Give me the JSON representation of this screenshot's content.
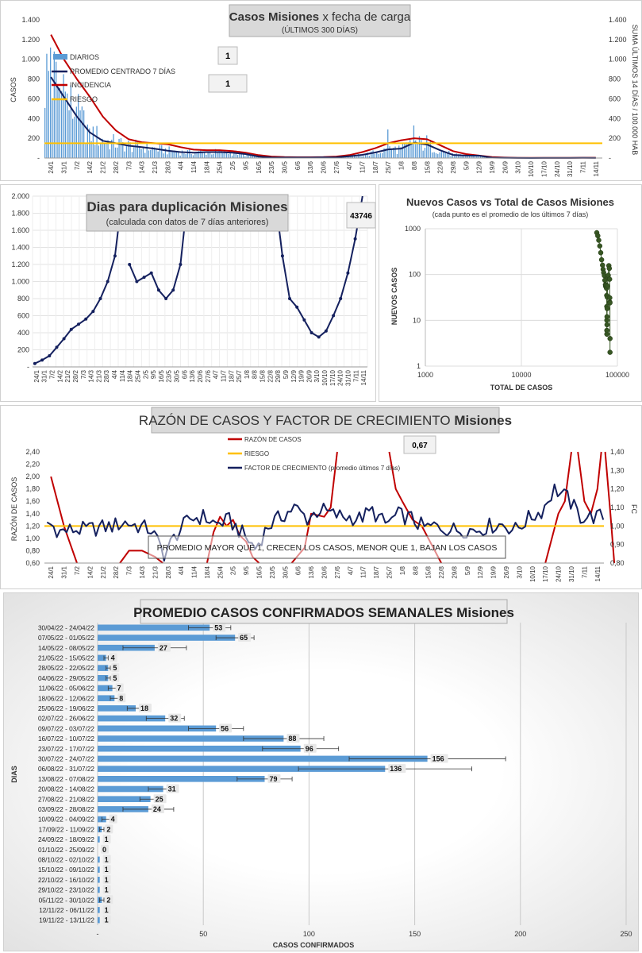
{
  "chart_data": [
    {
      "type": "bar",
      "id": "casos",
      "title_bold": "Casos  Misiones",
      "title_rest": "x fecha  de carga",
      "subtitle": "(ÚLTIMOS 300 DÍAS)",
      "ylabel": "CASOS",
      "y2label": "SUMA ÚLTIMOS 14 DÍAS / 100.000 HAB",
      "ylim": [
        0,
        1400
      ],
      "yticks": [
        "-",
        "200",
        "400",
        "600",
        "800",
        "1.000",
        "1.200",
        "1.400"
      ],
      "y2ticks": [
        "-",
        "200",
        "400",
        "600",
        "800",
        "1.000",
        "1.200",
        "1.400"
      ],
      "x_labels": [
        "24/1",
        "31/1",
        "7/2",
        "14/2",
        "21/2",
        "28/2",
        "7/3",
        "14/3",
        "21/3",
        "28/3",
        "4/4",
        "11/4",
        "18/4",
        "25/4",
        "2/5",
        "9/5",
        "16/5",
        "23/5",
        "30/5",
        "6/6",
        "13/6",
        "20/6",
        "27/6",
        "4/7",
        "11/7",
        "18/7",
        "25/7",
        "1/8",
        "8/8",
        "15/8",
        "22/8",
        "29/8",
        "5/9",
        "12/9",
        "19/9",
        "26/9",
        "3/10",
        "10/10",
        "17/10",
        "24/10",
        "31/10",
        "7/11",
        "14/11"
      ],
      "legend": [
        "DIARIOS",
        "PROMEDIO CENTRADO 7 DÍAS",
        "INCIDENCIA",
        "RIESGO"
      ],
      "badge1": "1",
      "badge2": "1",
      "riesgo": 150,
      "colors": {
        "diarios": "#5b9bd5",
        "promedio": "#14205e",
        "incidencia": "#c00000",
        "riesgo": "#ffc000"
      },
      "promedio_weekly": [
        820,
        620,
        420,
        260,
        175,
        150,
        125,
        110,
        95,
        75,
        60,
        55,
        60,
        60,
        55,
        40,
        15,
        6,
        5,
        5,
        5,
        7,
        8,
        18,
        32,
        56,
        88,
        96,
        156,
        136,
        79,
        31,
        25,
        24,
        4,
        2,
        1,
        0,
        1,
        1,
        1,
        2,
        1
      ],
      "incidencia_weekly": [
        1250,
        1000,
        800,
        620,
        420,
        280,
        190,
        160,
        150,
        140,
        110,
        85,
        80,
        80,
        70,
        55,
        30,
        15,
        10,
        8,
        8,
        10,
        15,
        30,
        60,
        100,
        150,
        180,
        200,
        190,
        130,
        70,
        40,
        25,
        10,
        5,
        2,
        2,
        2,
        2,
        2,
        3,
        3
      ],
      "diarios_peaks": [
        [
          0,
          1120
        ],
        [
          1,
          850
        ],
        [
          2,
          520
        ],
        [
          3,
          300
        ],
        [
          26,
          290
        ],
        [
          28,
          330
        ],
        [
          29,
          230
        ]
      ]
    },
    {
      "type": "line",
      "id": "duplicacion",
      "title": "Dias para duplicación Misiones",
      "subtitle": "(calculada con datos de 7 días anteriores)",
      "badge": "43746",
      "ylim": [
        0,
        2000
      ],
      "yticks": [
        "-",
        "200",
        "400",
        "600",
        "800",
        "1.000",
        "1.200",
        "1.400",
        "1.600",
        "1.800",
        "2.000"
      ],
      "x_labels": [
        "24/1",
        "31/1",
        "7/2",
        "14/2",
        "21/2",
        "28/2",
        "7/3",
        "14/3",
        "21/3",
        "28/3",
        "4/4",
        "11/4",
        "18/4",
        "25/4",
        "2/5",
        "9/5",
        "16/5",
        "23/5",
        "30/5",
        "6/6",
        "13/6",
        "20/6",
        "27/6",
        "4/7",
        "11/7",
        "18/7",
        "25/7",
        "1/8",
        "8/8",
        "15/8",
        "22/8",
        "29/8",
        "5/9",
        "12/9",
        "19/9",
        "26/9",
        "3/10",
        "10/10",
        "17/10",
        "24/10",
        "31/10",
        "7/11",
        "14/11"
      ],
      "color": "#14205e",
      "segments": [
        [
          [
            0,
            40
          ],
          [
            1,
            80
          ],
          [
            2,
            130
          ],
          [
            3,
            230
          ],
          [
            4,
            330
          ],
          [
            5,
            440
          ],
          [
            6,
            500
          ],
          [
            7,
            560
          ],
          [
            8,
            650
          ],
          [
            9,
            800
          ],
          [
            10,
            1000
          ],
          [
            11,
            1300
          ],
          [
            12,
            2000
          ]
        ],
        [
          [
            13,
            1200
          ],
          [
            14,
            1000
          ],
          [
            15,
            1050
          ],
          [
            16,
            1100
          ],
          [
            17,
            900
          ],
          [
            18,
            800
          ],
          [
            19,
            900
          ],
          [
            20,
            1200
          ],
          [
            21,
            2000
          ]
        ],
        [
          [
            33,
            2000
          ],
          [
            34,
            1300
          ],
          [
            35,
            800
          ],
          [
            36,
            700
          ],
          [
            37,
            550
          ],
          [
            38,
            400
          ],
          [
            39,
            350
          ],
          [
            40,
            420
          ],
          [
            41,
            600
          ],
          [
            42,
            800
          ],
          [
            43,
            1100
          ],
          [
            44,
            1500
          ],
          [
            45,
            2000
          ]
        ]
      ]
    },
    {
      "type": "scatter",
      "id": "nuevos_vs_total",
      "title": "Nuevos Casos vs Total de Casos Misiones",
      "subtitle": "(cada punto es el promedio de los últimos 7 días)",
      "xlabel": "TOTAL DE CASOS",
      "ylabel": "NUEVOS CASOS",
      "xscale": "log",
      "yscale": "log",
      "xticks": [
        "1000",
        "10000",
        "100000"
      ],
      "yticks": [
        "1000",
        "100",
        "10",
        "1"
      ],
      "color": "#375623",
      "points": [
        [
          61000,
          820
        ],
        [
          62500,
          700
        ],
        [
          64000,
          560
        ],
        [
          65500,
          420
        ],
        [
          67000,
          300
        ],
        [
          68500,
          210
        ],
        [
          70000,
          160
        ],
        [
          71000,
          130
        ],
        [
          72000,
          110
        ],
        [
          73000,
          95
        ],
        [
          74000,
          75
        ],
        [
          75000,
          60
        ],
        [
          75500,
          55
        ],
        [
          76000,
          60
        ],
        [
          76500,
          58
        ],
        [
          77000,
          50
        ],
        [
          77300,
          35
        ],
        [
          77500,
          20
        ],
        [
          77600,
          10
        ],
        [
          77700,
          6
        ],
        [
          77750,
          5
        ],
        [
          77800,
          5
        ],
        [
          77850,
          6
        ],
        [
          77900,
          8
        ],
        [
          78000,
          12
        ],
        [
          78200,
          18
        ],
        [
          78500,
          32
        ],
        [
          79000,
          56
        ],
        [
          79600,
          88
        ],
        [
          80300,
          96
        ],
        [
          81400,
          156
        ],
        [
          82400,
          136
        ],
        [
          83000,
          79
        ],
        [
          83300,
          31
        ],
        [
          83500,
          25
        ],
        [
          83700,
          24
        ],
        [
          83750,
          4
        ],
        [
          83760,
          2
        ]
      ]
    },
    {
      "type": "line",
      "id": "razon",
      "title_rest": "RAZÓN DE CASOS Y FACTOR DE CRECIMIENTO",
      "title_bold": "Misiones",
      "ylabel": "RAZÓN DE CASOS",
      "y2label": "FC",
      "ylim": [
        0.6,
        2.4
      ],
      "y2lim": [
        0.8,
        1.4
      ],
      "yticks": [
        "0,60",
        "0,80",
        "1,00",
        "1,20",
        "1,40",
        "1,60",
        "1,80",
        "2,00",
        "2,20",
        "2,40"
      ],
      "y2ticks": [
        "0,80",
        "0,90",
        "1,00",
        "1,10",
        "1,20",
        "1,30",
        "1,40"
      ],
      "x_labels": [
        "24/1",
        "31/1",
        "7/2",
        "14/2",
        "21/2",
        "28/2",
        "7/3",
        "14/3",
        "21/3",
        "28/3",
        "4/4",
        "11/4",
        "18/4",
        "25/4",
        "2/5",
        "9/5",
        "16/5",
        "23/5",
        "30/5",
        "6/6",
        "13/6",
        "20/6",
        "27/6",
        "4/7",
        "11/7",
        "18/7",
        "25/7",
        "1/8",
        "8/8",
        "15/8",
        "22/8",
        "29/8",
        "5/9",
        "12/9",
        "19/9",
        "26/9",
        "3/10",
        "10/10",
        "17/10",
        "24/10",
        "31/10",
        "7/11",
        "14/11"
      ],
      "legend": [
        "RAZÓN DE CASOS",
        "RIESGO",
        "FACTOR DE CRECIMIENTO (promedio últimos 7 días)"
      ],
      "badge": "0,67",
      "note": "PROMEDIO MAYOR QUE 1, CRECEN LOS CASOS, MENOR QUE 1, BAJAN LOS CASOS",
      "riesgo": 1.2,
      "colors": {
        "razon": "#c00000",
        "riesgo": "#ffc000",
        "fc": "#14205e"
      },
      "razon_segments": [
        [
          [
            0,
            2.0
          ],
          [
            0.5,
            1.6
          ],
          [
            1,
            1.2
          ],
          [
            1.5,
            0.9
          ],
          [
            2,
            0.6
          ]
        ],
        [
          [
            5.3,
            0.6
          ],
          [
            6,
            0.8
          ],
          [
            7,
            0.8
          ],
          [
            8,
            0.7
          ],
          [
            8.6,
            0.6
          ]
        ],
        [
          [
            12,
            0.6
          ],
          [
            12.5,
            1.1
          ],
          [
            13,
            1.35
          ],
          [
            13.5,
            1.2
          ],
          [
            14,
            1.3
          ],
          [
            14.5,
            1.05
          ],
          [
            15,
            0.95
          ],
          [
            15.5,
            0.7
          ],
          [
            16,
            0.6
          ]
        ],
        [
          [
            18.5,
            0.6
          ],
          [
            19.5,
            0.85
          ],
          [
            20,
            1.4
          ],
          [
            21,
            1.35
          ],
          [
            21.5,
            1.5
          ],
          [
            22,
            2.4
          ]
        ],
        [
          [
            26,
            2.4
          ],
          [
            26.5,
            1.8
          ],
          [
            27,
            1.6
          ],
          [
            27.8,
            1.3
          ],
          [
            28.5,
            1.2
          ],
          [
            29,
            1.0
          ],
          [
            29.5,
            0.8
          ],
          [
            30,
            0.6
          ]
        ],
        [
          [
            38,
            0.6
          ],
          [
            38.5,
            1.0
          ],
          [
            39,
            1.4
          ],
          [
            39.5,
            1.6
          ],
          [
            40,
            2.4
          ]
        ],
        [
          [
            40.5,
            2.4
          ],
          [
            41,
            1.6
          ],
          [
            41.5,
            1.4
          ],
          [
            42,
            1.8
          ],
          [
            42.3,
            2.4
          ]
        ],
        [
          [
            42.6,
            2.4
          ],
          [
            43,
            1.4
          ],
          [
            43.3,
            0.6
          ]
        ]
      ],
      "fc": [
        1.02,
        0.97,
        0.98,
        0.98,
        0.99,
        1.0,
        1.02,
        1.0,
        0.98,
        0.85,
        0.96,
        1.04,
        1.05,
        1.01,
        1.03,
        0.96,
        0.88,
        1.0,
        1.05,
        1.1,
        1.04,
        1.09,
        1.06,
        1.05,
        1.04,
        1.08,
        1.01,
        1.06,
        1.04,
        0.99,
        1.0,
        0.98,
        0.98,
        0.98,
        1.0,
        1.01,
        0.98,
        1.04,
        1.08,
        1.2,
        1.15,
        1.05,
        1.05
      ]
    },
    {
      "type": "bar",
      "orientation": "horizontal",
      "id": "semanales",
      "title": "PROMEDIO CASOS CONFIRMADOS SEMANALES Misiones",
      "xlabel": "CASOS CONFIRMADOS",
      "ylabel": "DIAS",
      "xlim": [
        0,
        250
      ],
      "xticks": [
        "-",
        "50",
        "100",
        "150",
        "200",
        "250"
      ],
      "color": "#5b9bd5",
      "categories": [
        "30/04/22 - 24/04/22",
        "07/05/22 - 01/05/22",
        "14/05/22 - 08/05/22",
        "21/05/22 - 15/05/22",
        "28/05/22 - 22/05/22",
        "04/06/22 - 29/05/22",
        "11/06/22 - 05/06/22",
        "18/06/22 - 12/06/22",
        "25/06/22 - 19/06/22",
        "02/07/22 - 26/06/22",
        "09/07/22 - 03/07/22",
        "16/07/22 - 10/07/22",
        "23/07/22 - 17/07/22",
        "30/07/22 - 24/07/22",
        "06/08/22 - 31/07/22",
        "13/08/22 - 07/08/22",
        "20/08/22 - 14/08/22",
        "27/08/22 - 21/08/22",
        "03/09/22 - 28/08/22",
        "10/09/22 - 04/09/22",
        "17/09/22 - 11/09/22",
        "24/09/22 - 18/09/22",
        "01/10/22 - 25/09/22",
        "08/10/22 - 02/10/22",
        "15/10/22 - 09/10/22",
        "22/10/22 - 16/10/22",
        "29/10/22 - 23/10/22",
        "05/11/22 - 30/10/22",
        "12/11/22 - 06/11/22",
        "19/11/22 - 13/11/22"
      ],
      "values": [
        53,
        65,
        27,
        4,
        5,
        5,
        7,
        8,
        18,
        32,
        56,
        88,
        96,
        156,
        136,
        79,
        31,
        25,
        24,
        4,
        2,
        1,
        0,
        1,
        1,
        1,
        1,
        2,
        1,
        1
      ],
      "labels": [
        "53",
        "65",
        "27",
        "4",
        "5",
        "5",
        "7",
        "8",
        "18",
        "32",
        "56",
        "88",
        "96",
        "156",
        "136",
        "79",
        "31",
        "25",
        "24",
        "4",
        "2",
        "1",
        "0",
        "1",
        "1",
        "1",
        "1",
        "2",
        "1",
        "1"
      ],
      "err": [
        10,
        9,
        15,
        1,
        1,
        1,
        2,
        2,
        4,
        9,
        13,
        19,
        18,
        37,
        41,
        13,
        7,
        5,
        12,
        2,
        1,
        0,
        0,
        0,
        0,
        0,
        0,
        1,
        0,
        0
      ]
    }
  ]
}
